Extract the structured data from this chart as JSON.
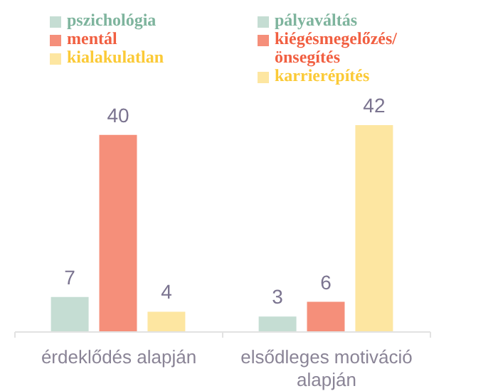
{
  "chart_data": {
    "type": "bar",
    "data_labels": true,
    "legend": "top",
    "categories": [
      "érdeklődés alapján",
      "elsődleges motiváció alapján"
    ],
    "series": [
      {
        "name": "pszichológia",
        "color": "#c5ddd3",
        "values": [
          7,
          null
        ]
      },
      {
        "name": "mentál",
        "color": "#f58f7a",
        "values": [
          40,
          null
        ]
      },
      {
        "name": "kialakulatlan",
        "color": "#fde6a1",
        "values": [
          4,
          null
        ]
      },
      {
        "name": "pályaváltás",
        "color": "#c5ddd3",
        "values": [
          null,
          3
        ]
      },
      {
        "name": "kiégésmegelőzés/önsegítés",
        "color": "#f58f7a",
        "values": [
          null,
          6
        ]
      },
      {
        "name": "karrierépítés",
        "color": "#fde6a1",
        "values": [
          null,
          42
        ]
      }
    ]
  }
}
